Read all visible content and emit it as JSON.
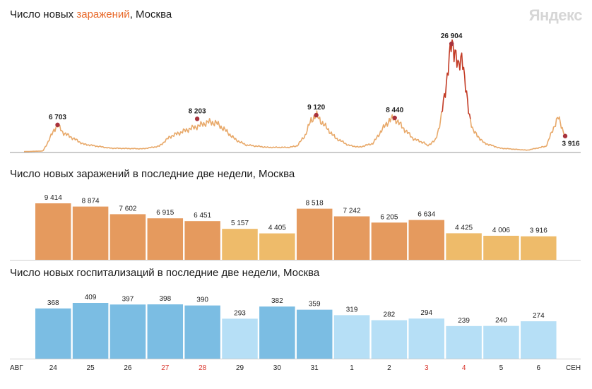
{
  "brand": "Яндекс",
  "titles": {
    "main_before": "Число новых ",
    "main_highlight": "заражений",
    "main_after": ", Москва",
    "bars1": "Число новых заражений в последние две недели, Москва",
    "bars2": "Число новых госпитализаций в последние две недели, Москва"
  },
  "colors": {
    "line": "#e8a96a",
    "line_peak": "#c23a24",
    "marker": "#a8323c",
    "bar_dark_orange": "#e59a5e",
    "bar_light_orange": "#eebb6a",
    "bar_dark_blue": "#7bbde3",
    "bar_light_blue": "#b6dff6",
    "red_date": "#d9342b"
  },
  "chart_data": [
    {
      "type": "line",
      "title": "Число новых заражений, Москва",
      "annotations": [
        {
          "label": "6 703",
          "value": 6703
        },
        {
          "label": "8 203",
          "value": 8203
        },
        {
          "label": "9 120",
          "value": 9120
        },
        {
          "label": "8 440",
          "value": 8440
        },
        {
          "label": "26 904",
          "value": 26904
        },
        {
          "label": "3 916",
          "value": 3916
        }
      ]
    },
    {
      "type": "bar",
      "title": "Число новых заражений в последние две недели, Москва",
      "categories": [
        "24",
        "25",
        "26",
        "27",
        "28",
        "29",
        "30",
        "31",
        "1",
        "2",
        "3",
        "4",
        "5",
        "6"
      ],
      "values": [
        9414,
        8874,
        7602,
        6915,
        6451,
        5157,
        4405,
        8518,
        7242,
        6205,
        6634,
        4425,
        4006,
        3916
      ],
      "value_labels": [
        "9 414",
        "8 874",
        "7 602",
        "6 915",
        "6 451",
        "5 157",
        "4 405",
        "8 518",
        "7 242",
        "6 205",
        "6 634",
        "4 425",
        "4 006",
        "3 916"
      ],
      "shade": [
        "dark",
        "dark",
        "dark",
        "dark",
        "dark",
        "light",
        "light",
        "dark",
        "dark",
        "dark",
        "dark",
        "light",
        "light",
        "light"
      ]
    },
    {
      "type": "bar",
      "title": "Число новых госпитализаций в последние две недели, Москва",
      "categories": [
        "24",
        "25",
        "26",
        "27",
        "28",
        "29",
        "30",
        "31",
        "1",
        "2",
        "3",
        "4",
        "5",
        "6"
      ],
      "values": [
        368,
        409,
        397,
        398,
        390,
        293,
        382,
        359,
        319,
        282,
        294,
        239,
        240,
        274
      ],
      "value_labels": [
        "368",
        "409",
        "397",
        "398",
        "390",
        "293",
        "382",
        "359",
        "319",
        "282",
        "294",
        "239",
        "240",
        "274"
      ],
      "shade": [
        "dark",
        "dark",
        "dark",
        "dark",
        "dark",
        "light",
        "dark",
        "dark",
        "light",
        "light",
        "light",
        "light",
        "light",
        "light"
      ]
    }
  ],
  "x_axis": {
    "start_label": "АВГ",
    "end_label": "СЕН",
    "red_dates": [
      "27",
      "28",
      "3",
      "4"
    ]
  }
}
